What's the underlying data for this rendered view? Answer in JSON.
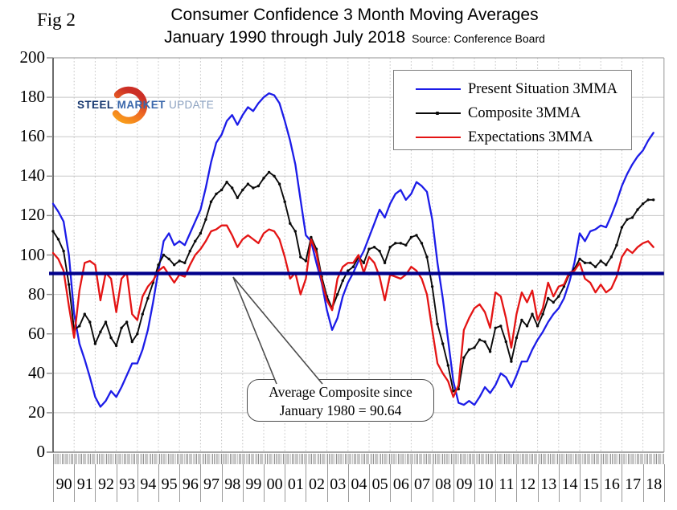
{
  "fig_label": "Fig 2",
  "title": {
    "line1": "Consumer Confidence 3 Month Moving Averages",
    "line2": "January 1990 through July 2018",
    "source": "Source: Conference Board"
  },
  "logo": {
    "word1": "STEEL",
    "word2": "MARKET",
    "word3": "UPDATE"
  },
  "legend": {
    "items": [
      {
        "label": "Present Situation 3MMA",
        "color": "#1c1ce8",
        "marker": false
      },
      {
        "label": "Composite 3MMA",
        "color": "#0a0a0a",
        "marker": true
      },
      {
        "label": "Expectations 3MMA",
        "color": "#e41414",
        "marker": false
      }
    ]
  },
  "annotation": {
    "line1": "Average Composite since",
    "line2": "January 1980 = 90.64"
  },
  "chart_data": {
    "type": "line",
    "title": "Consumer Confidence 3 Month Moving Averages",
    "subtitle": "January 1990 through July 2018",
    "source": "Source: Conference Board",
    "x_start": 1990.0,
    "x_step": 0.25,
    "x_end": 2018.5,
    "ylim": [
      0,
      200
    ],
    "ytick_step": 20,
    "y_tick_labels": [
      "0",
      "20",
      "40",
      "60",
      "80",
      "100",
      "120",
      "140",
      "160",
      "180",
      "200"
    ],
    "x_tick_labels": [
      "90",
      "91",
      "92",
      "93",
      "94",
      "95",
      "96",
      "97",
      "98",
      "99",
      "00",
      "01",
      "02",
      "03",
      "04",
      "05",
      "06",
      "07",
      "08",
      "09",
      "10",
      "11",
      "12",
      "13",
      "14",
      "15",
      "16",
      "17",
      "18"
    ],
    "grid": true,
    "legend_position": "top-right",
    "average_line": {
      "value": 90.64,
      "color": "#00008b",
      "label": "Average Composite since January 1980 = 90.64"
    },
    "series": [
      {
        "name": "Present Situation 3MMA",
        "color": "#1c1ce8",
        "marker": false,
        "values": [
          126,
          122,
          117,
          100,
          70,
          55,
          47,
          38,
          28,
          23,
          26,
          31,
          28,
          33,
          39,
          45,
          45,
          52,
          62,
          76,
          92,
          107,
          111,
          105,
          107,
          105,
          111,
          117,
          123,
          134,
          147,
          157,
          161,
          168,
          171,
          166,
          171,
          175,
          173,
          177,
          180,
          182,
          181,
          177,
          168,
          158,
          146,
          128,
          110,
          107,
          96,
          86,
          72,
          62,
          68,
          79,
          86,
          91,
          97,
          102,
          109,
          116,
          123,
          119,
          126,
          131,
          133,
          128,
          131,
          137,
          135,
          132,
          118,
          96,
          78,
          57,
          36,
          25,
          24,
          26,
          24,
          28,
          33,
          30,
          34,
          40,
          38,
          33,
          39,
          46,
          46,
          52,
          57,
          61,
          66,
          70,
          73,
          78,
          86,
          96,
          111,
          107,
          112,
          113,
          115,
          114,
          120,
          127,
          135,
          141,
          146,
          150,
          153,
          158,
          162
        ]
      },
      {
        "name": "Composite 3MMA",
        "color": "#0a0a0a",
        "marker": true,
        "values": [
          112,
          108,
          102,
          85,
          62,
          64,
          70,
          66,
          55,
          61,
          66,
          58,
          54,
          63,
          66,
          56,
          60,
          70,
          78,
          86,
          95,
          100,
          98,
          95,
          97,
          96,
          102,
          107,
          111,
          118,
          127,
          131,
          133,
          137,
          134,
          129,
          133,
          136,
          134,
          135,
          139,
          142,
          140,
          136,
          127,
          116,
          112,
          99,
          97,
          109,
          103,
          89,
          79,
          73,
          80,
          87,
          92,
          94,
          99,
          96,
          103,
          104,
          102,
          96,
          104,
          106,
          106,
          105,
          109,
          110,
          106,
          99,
          84,
          65,
          55,
          44,
          31,
          32,
          48,
          52,
          53,
          57,
          56,
          51,
          63,
          64,
          56,
          46,
          58,
          67,
          64,
          70,
          64,
          70,
          78,
          76,
          79,
          84,
          90,
          93,
          98,
          96,
          96,
          94,
          97,
          95,
          99,
          105,
          114,
          118,
          119,
          123,
          126,
          128,
          128
        ]
      },
      {
        "name": "Expectations 3MMA",
        "color": "#e41414",
        "marker": false,
        "values": [
          101,
          98,
          92,
          74,
          58,
          82,
          96,
          97,
          95,
          77,
          91,
          88,
          71,
          88,
          91,
          70,
          67,
          79,
          84,
          87,
          92,
          94,
          90,
          86,
          90,
          89,
          95,
          100,
          103,
          107,
          112,
          113,
          115,
          115,
          110,
          104,
          108,
          110,
          108,
          106,
          111,
          113,
          112,
          108,
          99,
          88,
          91,
          80,
          88,
          108,
          101,
          87,
          77,
          72,
          88,
          94,
          96,
          96,
          100,
          91,
          99,
          96,
          89,
          77,
          90,
          89,
          88,
          90,
          94,
          92,
          88,
          80,
          62,
          45,
          40,
          36,
          28,
          34,
          62,
          68,
          73,
          75,
          71,
          63,
          81,
          79,
          68,
          53,
          70,
          81,
          76,
          82,
          67,
          73,
          86,
          79,
          84,
          85,
          91,
          92,
          96,
          88,
          86,
          81,
          85,
          81,
          83,
          89,
          99,
          103,
          101,
          104,
          106,
          107,
          104
        ]
      }
    ]
  }
}
